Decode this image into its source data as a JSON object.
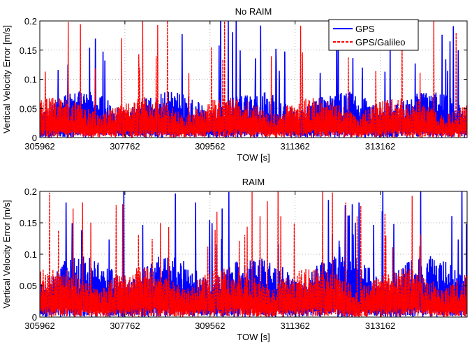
{
  "chart_data": [
    {
      "type": "line",
      "title": "No RAIM",
      "xlabel": "TOW [s]",
      "ylabel": "Vertical Velocity Error [m/s]",
      "xlim": [
        305962,
        315000
      ],
      "ylim": [
        0,
        0.2
      ],
      "xticks": [
        305962,
        307762,
        309562,
        311362,
        313162
      ],
      "xtick_labels": [
        "305962",
        "307762",
        "309562",
        "311362",
        "313162"
      ],
      "yticks": [
        0,
        0.05,
        0.1,
        0.15,
        0.2
      ],
      "ytick_labels": [
        "0",
        "0.05",
        "0.1",
        "0.15",
        "0.2"
      ],
      "grid": true,
      "legend_position": "top-right",
      "series": [
        {
          "name": "GPS",
          "color": "#0000ff",
          "style": "solid",
          "typical_max": 0.08,
          "typical_min": 0.0,
          "spike_max": 0.2
        },
        {
          "name": "GPS/Galileo",
          "color": "#ff0000",
          "style": "dashed",
          "typical_max": 0.07,
          "typical_min": 0.0,
          "spike_max": 0.2
        }
      ]
    },
    {
      "type": "line",
      "title": "RAIM",
      "xlabel": "TOW [s]",
      "ylabel": "Vertical Velocity Error [m/s]",
      "xlim": [
        305962,
        315000
      ],
      "ylim": [
        0,
        0.2
      ],
      "xticks": [
        305962,
        307762,
        309562,
        311362,
        313162
      ],
      "xtick_labels": [
        "305962",
        "307762",
        "309562",
        "311362",
        "313162"
      ],
      "yticks": [
        0,
        0.05,
        0.1,
        0.15,
        0.2
      ],
      "ytick_labels": [
        "0",
        "0.05",
        "0.1",
        "0.15",
        "0.2"
      ],
      "grid": true,
      "series": [
        {
          "name": "GPS",
          "color": "#0000ff",
          "style": "solid",
          "typical_max": 0.1,
          "typical_min": 0.0,
          "spike_max": 0.2
        },
        {
          "name": "GPS/Galileo",
          "color": "#ff0000",
          "style": "dashed",
          "typical_max": 0.08,
          "typical_min": 0.0,
          "spike_max": 0.2
        }
      ]
    }
  ]
}
